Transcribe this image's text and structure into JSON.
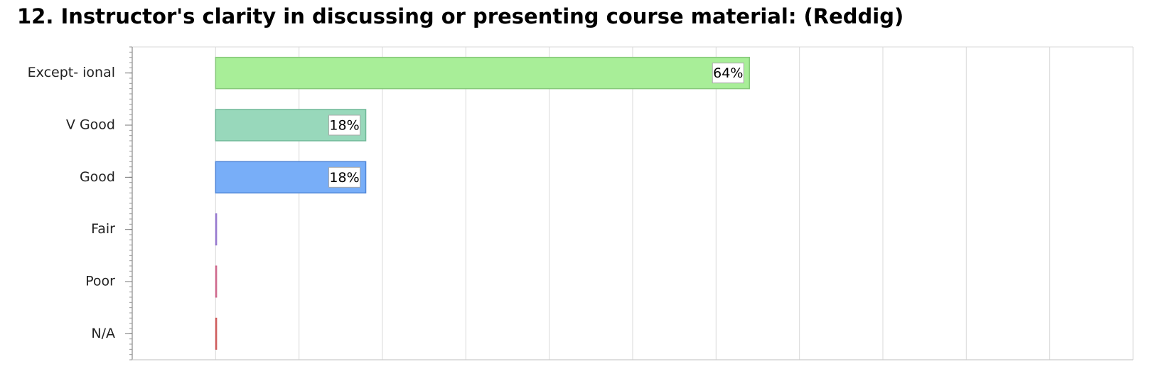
{
  "chart_data": {
    "type": "bar",
    "orientation": "horizontal",
    "title": "12. Instructor's clarity in discussing or presenting course material: (Reddig)",
    "xlabel": "",
    "ylabel": "",
    "categories": [
      "Except- ional",
      "V Good",
      "Good",
      "Fair",
      "Poor",
      "N/A"
    ],
    "values": [
      64,
      18,
      18,
      0,
      0,
      0
    ],
    "data_labels": [
      "64%",
      "18%",
      "18%",
      "",
      "",
      ""
    ],
    "colors": [
      "#a8ee98",
      "#98d8bb",
      "#78aef8",
      "#b69ae0",
      "#e08aa8",
      "#e07a7a"
    ],
    "border_colors": [
      "#86c97a",
      "#6fb897",
      "#4f86d8",
      "#8a6ac8",
      "#c85a80",
      "#c85050"
    ],
    "xlim": [
      -10,
      110
    ],
    "grid": true,
    "legend": "none"
  }
}
